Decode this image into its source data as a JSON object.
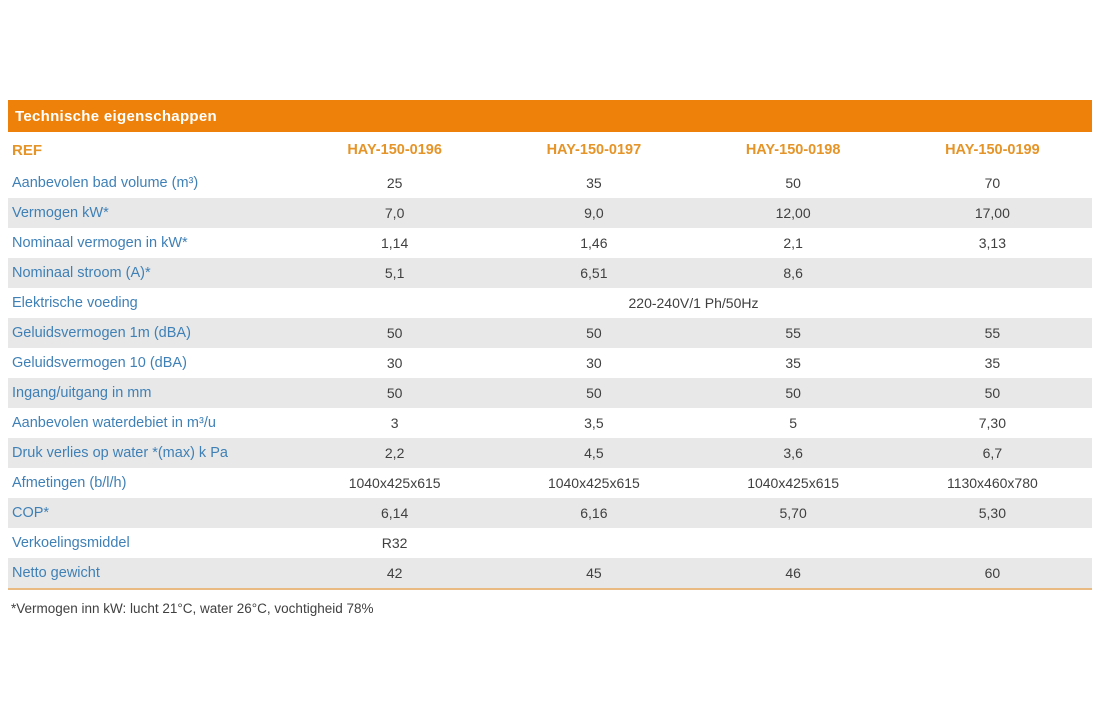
{
  "table": {
    "title": "Technische eigenschappen",
    "ref_label": "REF",
    "columns": [
      "HAY-150-0196",
      "HAY-150-0197",
      "HAY-150-0198",
      "HAY-150-0199"
    ],
    "rows": [
      {
        "label": "Aanbevolen bad volume (m³)",
        "values": [
          "25",
          "35",
          "50",
          "70"
        ]
      },
      {
        "label": "Vermogen kW*",
        "values": [
          "7,0",
          "9,0",
          "12,00",
          "17,00"
        ]
      },
      {
        "label": "Nominaal vermogen in kW*",
        "values": [
          "1,14",
          "1,46",
          "2,1",
          "3,13"
        ]
      },
      {
        "label": "Nominaal stroom (A)*",
        "values": [
          "5,1",
          "6,51",
          "8,6",
          ""
        ]
      },
      {
        "label": "Elektrische voeding",
        "span_value": "220-240V/1 Ph/50Hz"
      },
      {
        "label": "Geluidsvermogen 1m (dBA)",
        "values": [
          "50",
          "50",
          "55",
          "55"
        ]
      },
      {
        "label": "Geluidsvermogen 10 (dBA)",
        "values": [
          "30",
          "30",
          "35",
          "35"
        ]
      },
      {
        "label": "Ingang/uitgang in mm",
        "values": [
          "50",
          "50",
          "50",
          "50"
        ]
      },
      {
        "label": "Aanbevolen waterdebiet in m³/u",
        "values": [
          "3",
          "3,5",
          "5",
          "7,30"
        ]
      },
      {
        "label": "Druk verlies op water *(max) k Pa",
        "values": [
          "2,2",
          "4,5",
          "3,6",
          "6,7"
        ]
      },
      {
        "label": "Afmetingen (b/l/h)",
        "values": [
          "1040x425x615",
          "1040x425x615",
          "1040x425x615",
          "1130x460x780"
        ]
      },
      {
        "label": "COP*",
        "values": [
          "6,14",
          "6,16",
          "5,70",
          "5,30"
        ]
      },
      {
        "label": "Verkoelingsmiddel",
        "values": [
          "R32",
          "",
          "",
          ""
        ]
      },
      {
        "label": "Netto gewicht",
        "values": [
          "42",
          "45",
          "46",
          "60"
        ]
      }
    ],
    "footnote": "*Vermogen inn kW: lucht 21°C, water 26°C, vochtigheid 78%"
  },
  "colors": {
    "title_bar": "#ED8109",
    "header_text": "#E59428",
    "row_label": "#3F80B6",
    "value_text": "#404040",
    "stripe": "#E8E8E8",
    "bottom_border": "#E9BA82"
  }
}
